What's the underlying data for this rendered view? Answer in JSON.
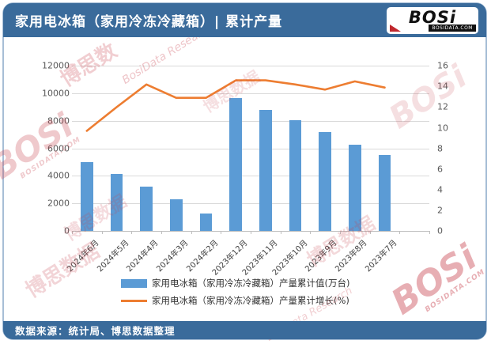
{
  "header": {
    "title": "家用电冰箱（家用冷冻冷藏箱）| 累计产量",
    "logo_text": "BOSi",
    "logo_sub": "BOSIDATA.COM"
  },
  "footer": {
    "source": "数据来源：统计局、博思数据整理"
  },
  "watermark": {
    "brand": "博思数据",
    "brand_short": "博思数",
    "script": "BosiData Research",
    "logo": "BOSi",
    "site": "BOSIDATA.COM"
  },
  "chart_data": {
    "type": "bar+line",
    "categories": [
      "2024年6月",
      "2024年5月",
      "2024年4月",
      "2024年3月",
      "2024年2月",
      "2023年12月",
      "2023年11月",
      "2023年10月",
      "2023年9月",
      "2023年8月",
      "2023年7月"
    ],
    "series": [
      {
        "name": "家用电冰箱（家用冷冻冷藏箱）产量累计值(万台)",
        "type": "bar",
        "color": "#5B9BD5",
        "axis": "left",
        "values": [
          5030,
          4130,
          3230,
          2320,
          1240,
          9650,
          8800,
          8030,
          7180,
          6260,
          5540
        ]
      },
      {
        "name": "家用电冰箱（家用冷冻冷藏箱）产量累计增长(%)",
        "type": "line",
        "color": "#ED7D31",
        "axis": "right",
        "values": [
          9.7,
          12.0,
          14.2,
          12.9,
          12.9,
          14.6,
          14.6,
          14.2,
          13.7,
          14.5,
          13.9
        ]
      }
    ],
    "left_axis": {
      "min": 0,
      "max": 12000,
      "step": 2000,
      "ticks": [
        "0",
        "2000",
        "4000",
        "6000",
        "8000",
        "10000",
        "12000"
      ]
    },
    "right_axis": {
      "min": 0,
      "max": 16,
      "step": 2,
      "ticks": [
        "0",
        "2",
        "4",
        "6",
        "8",
        "10",
        "12",
        "14",
        "16"
      ]
    },
    "grid": true,
    "legend_position": "bottom"
  }
}
